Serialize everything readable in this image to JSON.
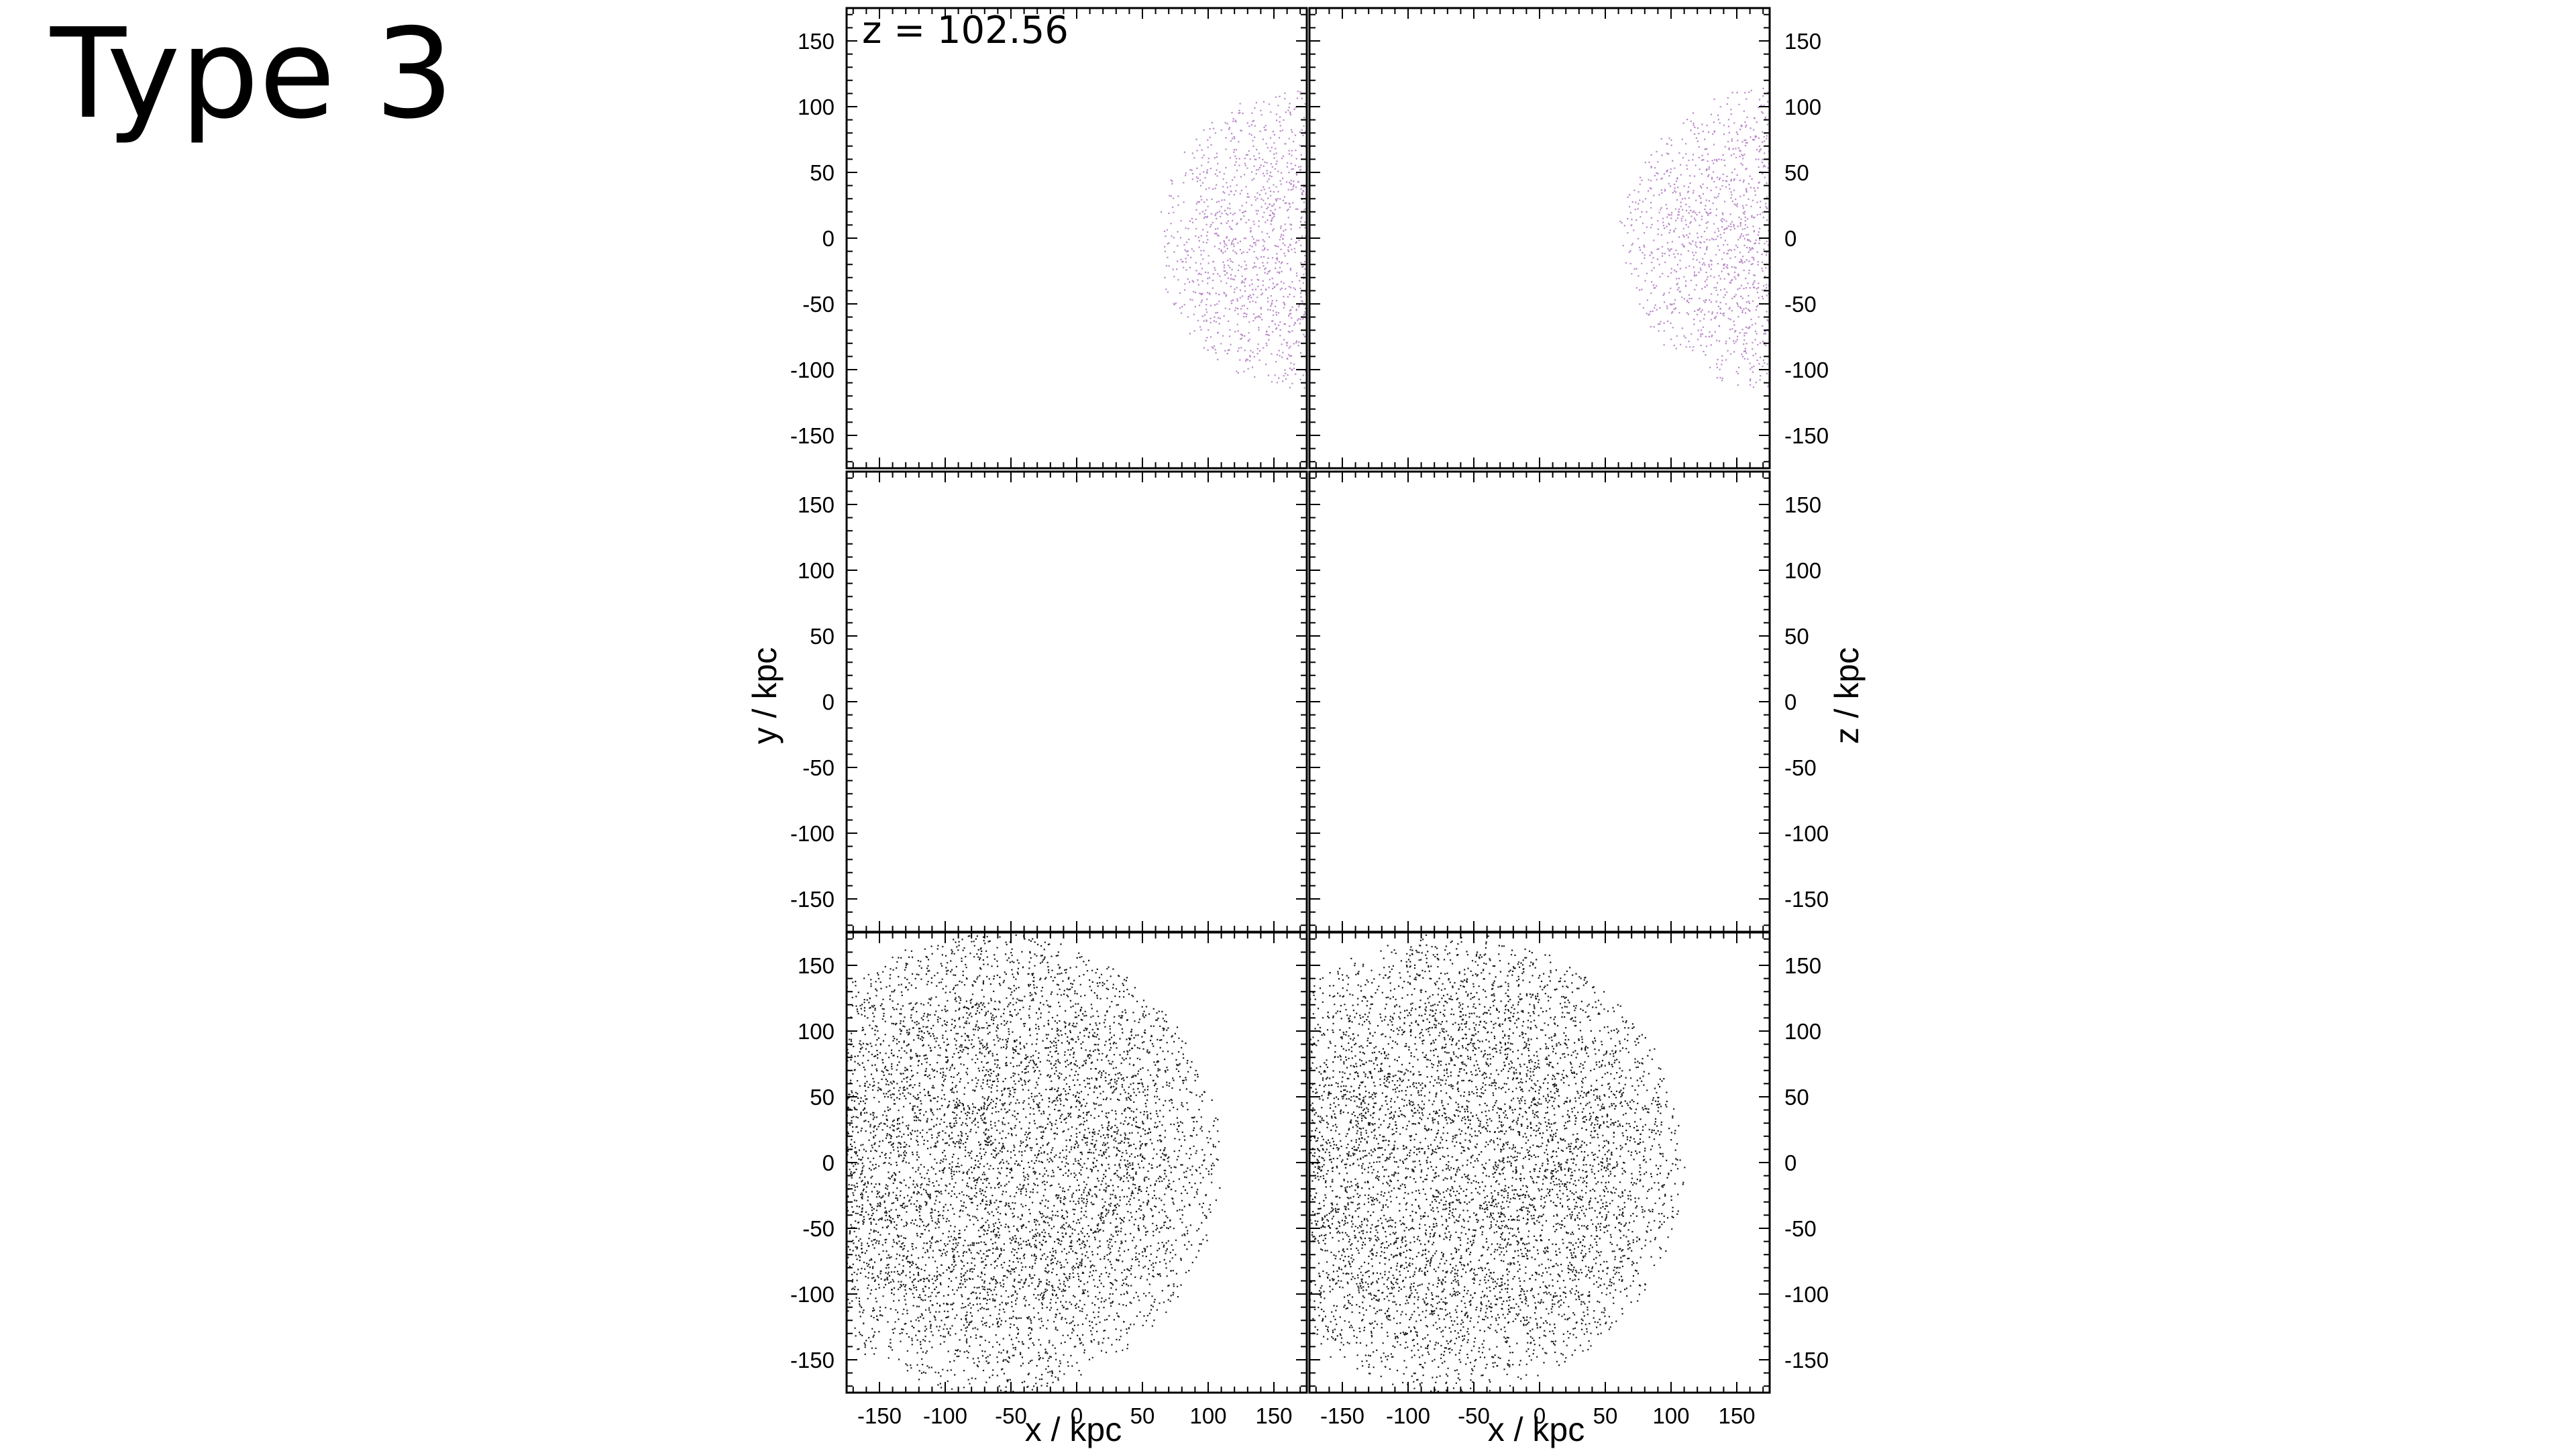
{
  "slide": {
    "title": "Type 3"
  },
  "figure": {
    "annotation": "z = 102.56",
    "left_ylabel": "y / kpc",
    "right_ylabel": "z / kpc",
    "xlabel": "x / kpc",
    "colors": {
      "frame": "#000000",
      "top_particles": "#b98ac8",
      "bottom_particles": "#1a1a1a"
    }
  },
  "chart_data": [
    {
      "type": "scatter",
      "panel": "top-left",
      "projection": "x-y",
      "xlim": [
        -175,
        175
      ],
      "ylim": [
        -175,
        175
      ],
      "yticks": [
        -150,
        -100,
        -50,
        0,
        50,
        100,
        150
      ],
      "tick_label_side": "left",
      "series": [
        {
          "color": "#b98ac8",
          "shape": "disc",
          "center": [
            175,
            0
          ],
          "radius": 115
        }
      ]
    },
    {
      "type": "scatter",
      "panel": "top-right",
      "projection": "x-z",
      "xlim": [
        -175,
        175
      ],
      "ylim": [
        -175,
        175
      ],
      "yticks": [
        -150,
        -100,
        -50,
        0,
        50,
        100,
        150
      ],
      "tick_label_side": "right",
      "series": [
        {
          "color": "#b98ac8",
          "shape": "disc",
          "center": [
            175,
            0
          ],
          "radius": 115
        }
      ]
    },
    {
      "type": "scatter",
      "panel": "middle-left",
      "projection": "x-y",
      "xlim": [
        -175,
        175
      ],
      "ylim": [
        -175,
        175
      ],
      "yticks": [
        -150,
        -100,
        -50,
        0,
        50,
        100,
        150
      ],
      "tick_label_side": "left",
      "series": []
    },
    {
      "type": "scatter",
      "panel": "middle-right",
      "projection": "x-z",
      "xlim": [
        -175,
        175
      ],
      "ylim": [
        -175,
        175
      ],
      "yticks": [
        -150,
        -100,
        -50,
        0,
        50,
        100,
        150
      ],
      "tick_label_side": "right",
      "series": []
    },
    {
      "type": "scatter",
      "panel": "bottom-left",
      "projection": "x-y",
      "xlim": [
        -175,
        175
      ],
      "ylim": [
        -175,
        175
      ],
      "xticks": [
        -150,
        -100,
        -50,
        0,
        50,
        100,
        150
      ],
      "yticks": [
        -150,
        -100,
        -50,
        0,
        50,
        100,
        150
      ],
      "tick_label_side": "left",
      "series": [
        {
          "color": "#1a1a1a",
          "shape": "disc",
          "center": [
            -65,
            0
          ],
          "radius": 175
        }
      ]
    },
    {
      "type": "scatter",
      "panel": "bottom-right",
      "projection": "x-z",
      "xlim": [
        -175,
        175
      ],
      "ylim": [
        -175,
        175
      ],
      "xticks": [
        -150,
        -100,
        -50,
        0,
        50,
        100,
        150
      ],
      "yticks": [
        -150,
        -100,
        -50,
        0,
        50,
        100,
        150
      ],
      "tick_label_side": "right",
      "series": [
        {
          "color": "#1a1a1a",
          "shape": "disc",
          "center": [
            -65,
            0
          ],
          "radius": 175
        }
      ]
    }
  ]
}
